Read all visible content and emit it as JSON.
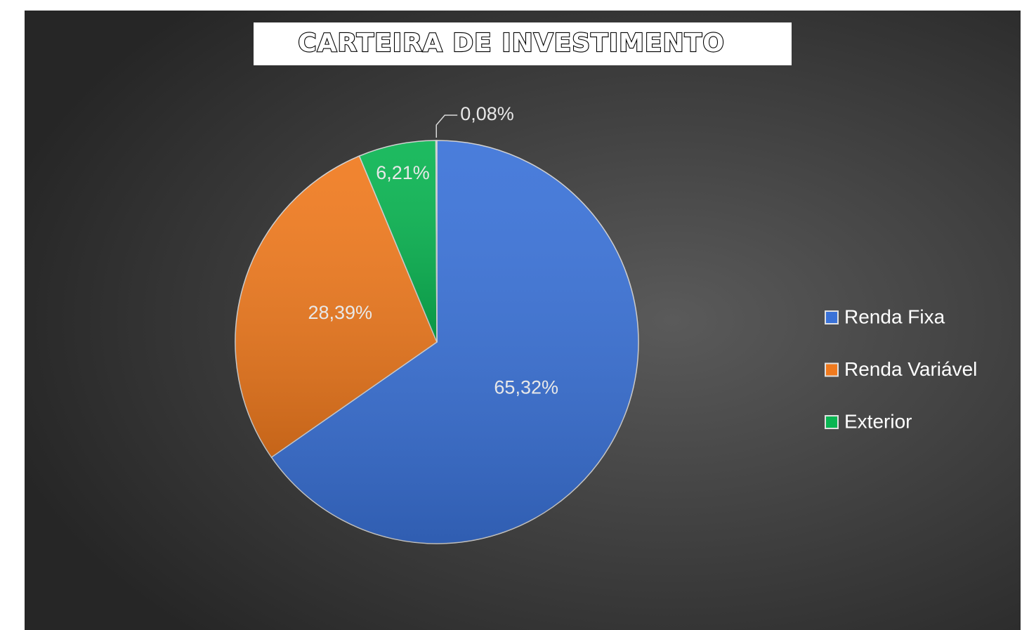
{
  "chart_data": {
    "type": "pie",
    "title": "CARTEIRA DE INVESTIMENTO",
    "categories": [
      "Renda Fixa",
      "Renda Variável",
      "Exterior",
      null
    ],
    "values": [
      65.32,
      28.39,
      6.21,
      0.08
    ],
    "value_labels": [
      "65,32%",
      "28,39%",
      "6,21%",
      "0,08%"
    ],
    "colors": [
      "#3a72d8",
      "#f07a1e",
      "#0ab552",
      "#a6a6a6"
    ],
    "legend": "right"
  }
}
